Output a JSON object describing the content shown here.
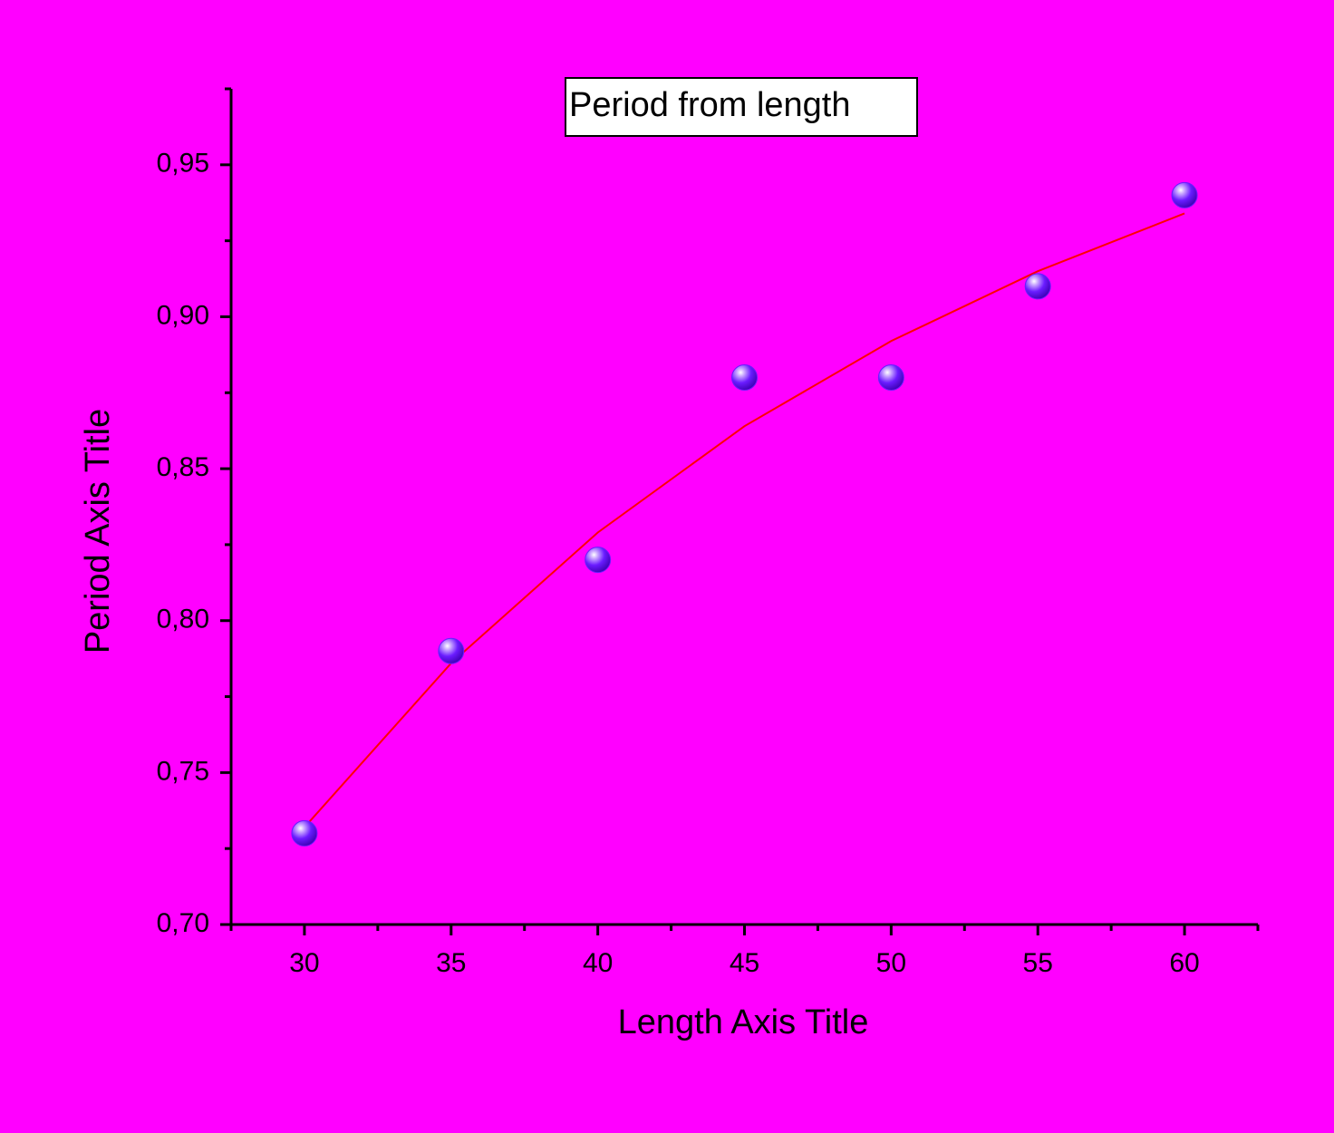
{
  "chart_data": {
    "type": "scatter",
    "title": "Period from length",
    "x_label": "Length Axis Title",
    "y_label": "Period Axis Title",
    "x": [
      30,
      35,
      40,
      45,
      50,
      55,
      60
    ],
    "series": [
      {
        "color": "#6a1cff",
        "values": [
          0.73,
          0.79,
          0.82,
          0.88,
          0.88,
          0.91,
          0.94
        ]
      }
    ],
    "fit": {
      "color": "#ff0000",
      "x": [
        30,
        35,
        40,
        45,
        50,
        55,
        60
      ],
      "values": [
        0.732,
        0.786,
        0.829,
        0.864,
        0.892,
        0.915,
        0.934
      ]
    },
    "xlim": [
      27.5,
      62.5
    ],
    "ylim": [
      0.7,
      0.975
    ],
    "xticks": [
      30,
      35,
      40,
      45,
      50,
      55,
      60
    ],
    "yticks": [
      {
        "value": 0.7,
        "label": "0,70"
      },
      {
        "value": 0.75,
        "label": "0,75"
      },
      {
        "value": 0.8,
        "label": "0,80"
      },
      {
        "value": 0.85,
        "label": "0,85"
      },
      {
        "value": 0.9,
        "label": "0,90"
      },
      {
        "value": 0.95,
        "label": "0,95"
      }
    ],
    "xminorticks": [
      27.5,
      32.5,
      37.5,
      42.5,
      47.5,
      52.5,
      57.5,
      62.5
    ],
    "yminorticks": [
      0.725,
      0.775,
      0.825,
      0.875,
      0.925,
      0.975
    ],
    "background": "#ff00ff",
    "grid": false
  }
}
